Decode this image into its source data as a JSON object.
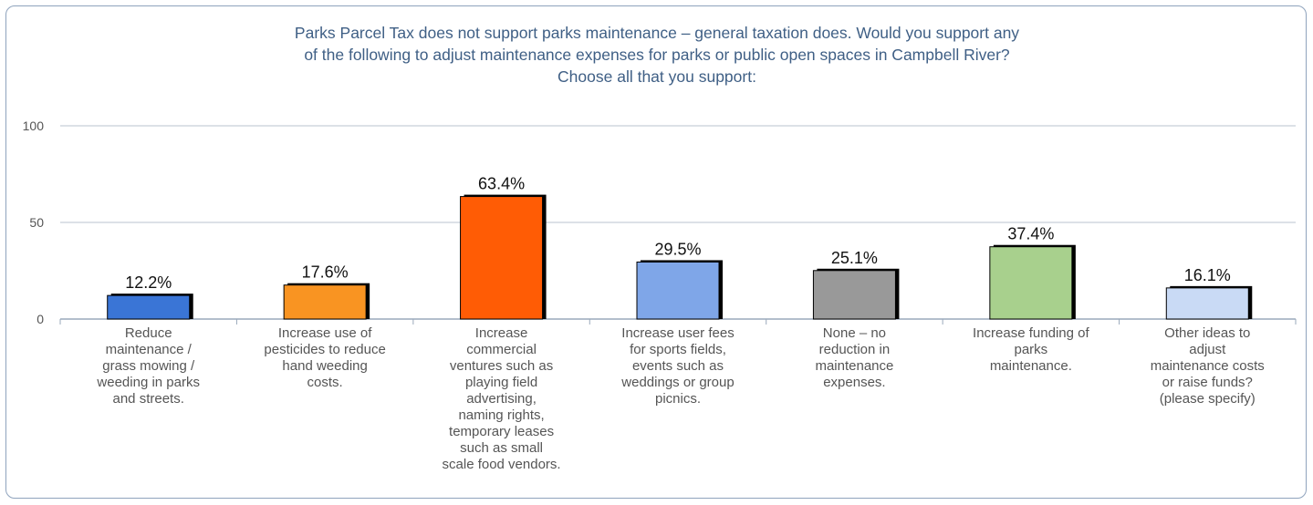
{
  "chart_data": {
    "type": "bar",
    "title_lines": [
      "Parks Parcel Tax does not support parks maintenance – general taxation does. Would you support any",
      "of the following to adjust maintenance expenses for parks or public open spaces in Campbell River?",
      "Choose all that you support:"
    ],
    "categories": [
      [
        "Reduce",
        "maintenance /",
        "grass mowing /",
        "weeding in parks",
        "and streets."
      ],
      [
        "Increase use of",
        "pesticides to reduce",
        "hand weeding",
        "costs."
      ],
      [
        "Increase",
        "commercial",
        "ventures such as",
        "playing field",
        "advertising,",
        "naming rights,",
        "temporary leases",
        "such as small",
        "scale food vendors."
      ],
      [
        "Increase user fees",
        "for sports fields,",
        "events such as",
        "weddings or group",
        "picnics."
      ],
      [
        "None – no",
        "reduction in",
        "maintenance",
        "expenses."
      ],
      [
        "Increase funding of",
        "parks",
        "maintenance."
      ],
      [
        "Other ideas to",
        "adjust",
        "maintenance costs",
        "or raise funds?",
        "(please specify)"
      ]
    ],
    "values": [
      12.2,
      17.6,
      63.4,
      29.5,
      25.1,
      37.4,
      16.1
    ],
    "data_labels": [
      "12.2%",
      "17.6%",
      "63.4%",
      "29.5%",
      "25.1%",
      "37.4%",
      "16.1%"
    ],
    "colors": [
      "#3a75d6",
      "#f99422",
      "#ff5c05",
      "#7fa6e8",
      "#999999",
      "#a8d08d",
      "#c9daf5"
    ],
    "yticks": [
      "0",
      "50",
      "100"
    ],
    "ylim": [
      0,
      100
    ],
    "grid": true,
    "legend": "none"
  }
}
